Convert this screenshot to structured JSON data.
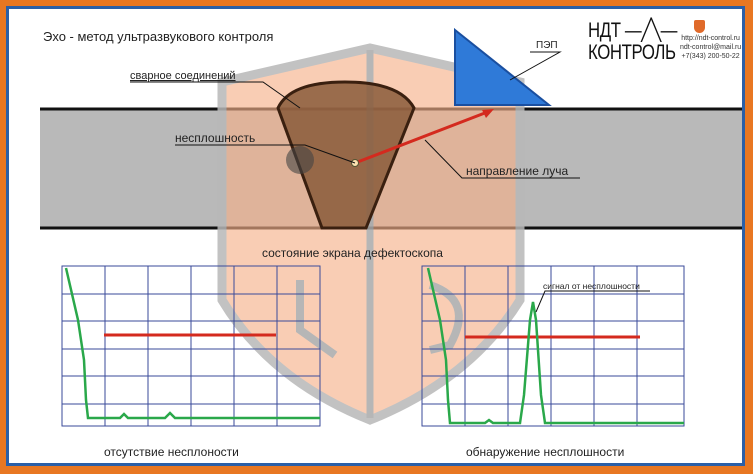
{
  "title": "Эхо - метод ультразвукового контроля",
  "labels": {
    "weld": "сварное соединений",
    "probe": "ПЭП",
    "flaw": "несплошность",
    "beam": "направление луча",
    "screen": "состояние экрана дефектоскопа",
    "signal": "сигнал от несплошности",
    "no_flaw": "отсутствие несплоности",
    "flaw_found": "обнаружение несплошности"
  },
  "logo": {
    "line1": "НДТ",
    "line2": "КОНТРОЛЬ",
    "website": "http://ndt-control.ru",
    "email": "ndt-control@mail.ru",
    "phone": "+7(343) 200-50-22"
  },
  "colors": {
    "frame": "#e87722",
    "border": "#2a5fa8",
    "trace": "#2aa84a",
    "gate": "#d42a1e",
    "grid": "#3a4a9a",
    "probe": "#2f7ad8",
    "weld": "#8a5a3a"
  }
}
